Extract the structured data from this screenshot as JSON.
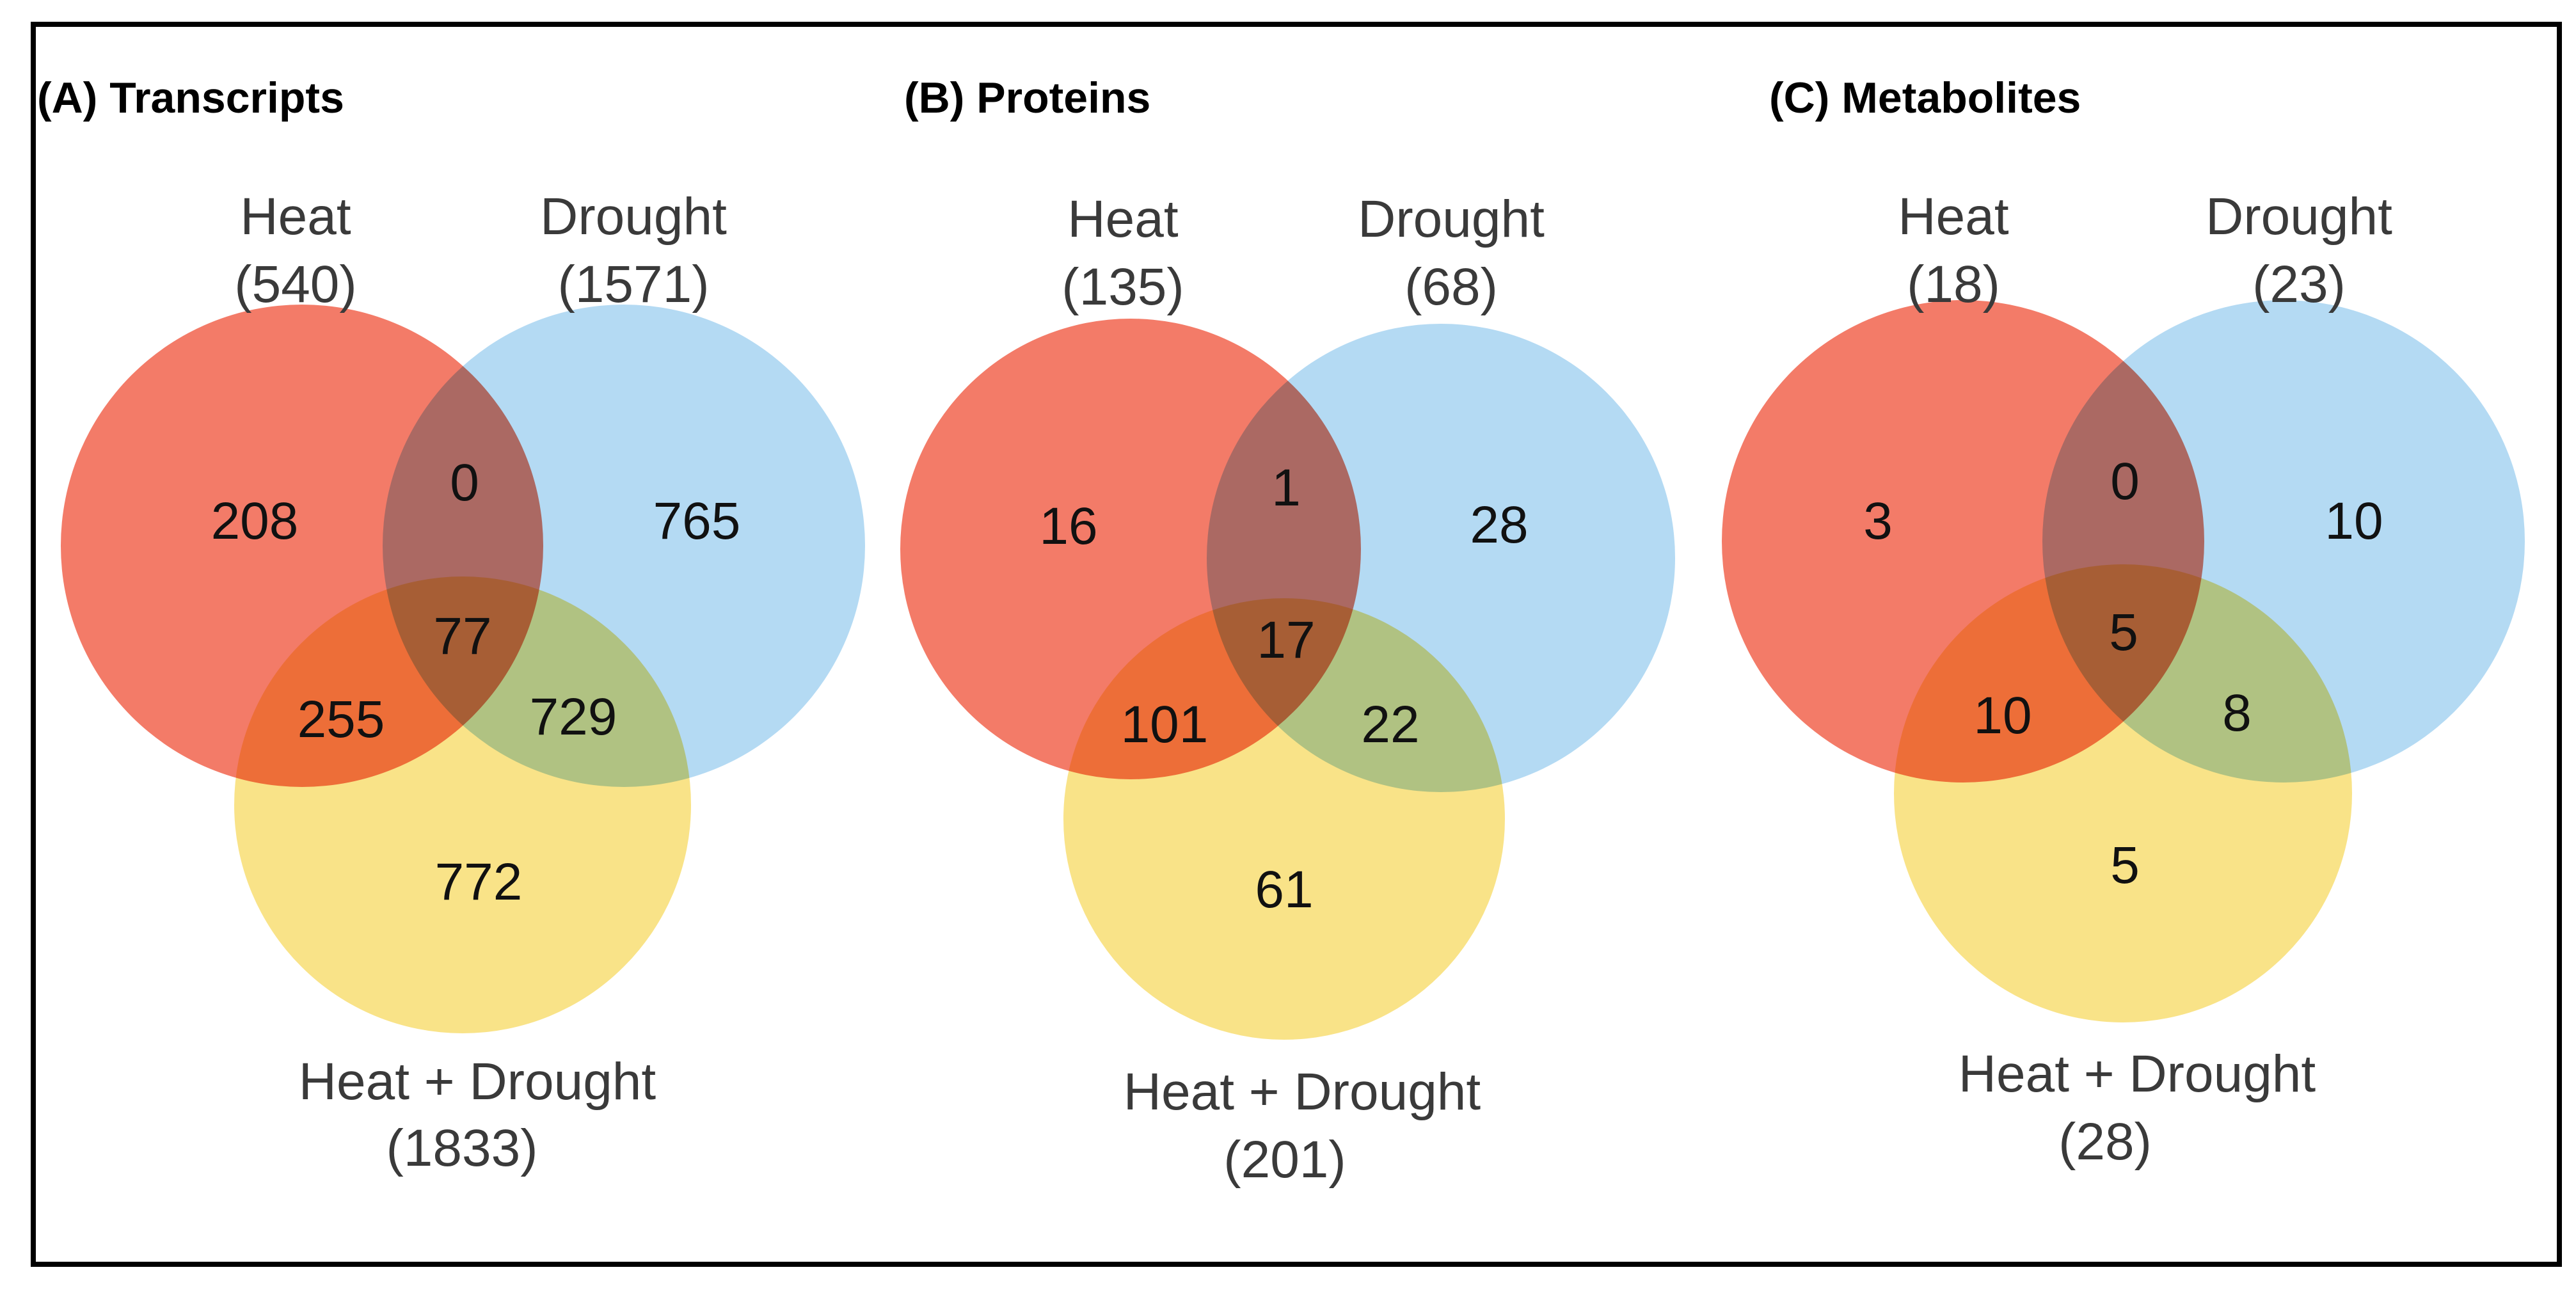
{
  "figure": {
    "colors": {
      "heat": "#F37B68",
      "drought": "#9FCFF0",
      "combined": "#F8DC6A",
      "frame": "#000000"
    },
    "panels": [
      {
        "title": "(A) Transcripts",
        "heat": {
          "label": "Heat",
          "total": "(540)"
        },
        "drought": {
          "label": "Drought",
          "total": "(1571)"
        },
        "combined": {
          "label": "Heat + Drought",
          "total": "(1833)"
        },
        "regions": {
          "heat_only": "208",
          "heat_drought": "0",
          "drought_only": "765",
          "all_three": "77",
          "heat_combined": "255",
          "drought_combined": "729",
          "combined_only": "772"
        }
      },
      {
        "title": "(B) Proteins",
        "heat": {
          "label": "Heat",
          "total": "(135)"
        },
        "drought": {
          "label": "Drought",
          "total": "(68)"
        },
        "combined": {
          "label": "Heat + Drought",
          "total": "(201)"
        },
        "regions": {
          "heat_only": "16",
          "heat_drought": "1",
          "drought_only": "28",
          "all_three": "17",
          "heat_combined": "101",
          "drought_combined": "22",
          "combined_only": "61"
        }
      },
      {
        "title": "(C) Metabolites",
        "heat": {
          "label": "Heat",
          "total": "(18)"
        },
        "drought": {
          "label": "Drought",
          "total": "(23)"
        },
        "combined": {
          "label": "Heat + Drought",
          "total": "(28)"
        },
        "regions": {
          "heat_only": "3",
          "heat_drought": "0",
          "drought_only": "10",
          "all_three": "5",
          "heat_combined": "10",
          "drought_combined": "8",
          "combined_only": "5"
        }
      }
    ]
  }
}
